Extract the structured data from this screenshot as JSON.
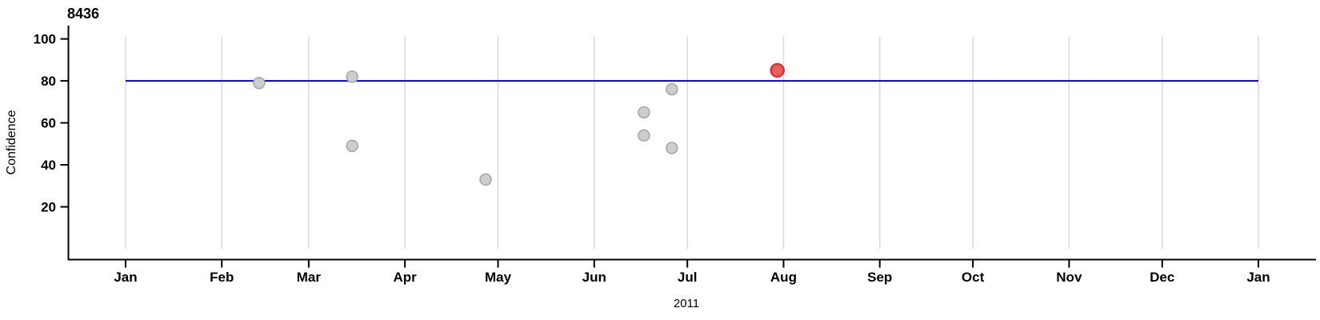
{
  "page": {
    "background": "#ffffff"
  },
  "chart_data": {
    "type": "scatter",
    "title": "8436",
    "x_axis": {
      "year_label": "2011",
      "tick_labels": [
        "Jan",
        "Feb",
        "Mar",
        "Apr",
        "May",
        "Jun",
        "Jul",
        "Aug",
        "Sep",
        "Oct",
        "Nov",
        "Dec",
        "Jan"
      ],
      "tick_day_offsets": [
        0,
        31,
        59,
        90,
        120,
        151,
        181,
        212,
        243,
        273,
        304,
        334,
        365
      ],
      "gridlines": true
    },
    "y_axis": {
      "label": "Confidence",
      "tick_values": [
        100,
        80,
        60,
        40,
        20
      ],
      "visible_range": [
        0,
        101
      ],
      "gridlines": false
    },
    "reference_line": {
      "value": 80,
      "span_days": [
        0,
        365
      ],
      "color": "#0000CC"
    },
    "points": [
      {
        "date": "Feb 13",
        "day_of_year": 43,
        "confidence": 79,
        "highlighted": false
      },
      {
        "date": "Mar 15",
        "day_of_year": 73,
        "confidence": 82,
        "highlighted": false
      },
      {
        "date": "Mar 15",
        "day_of_year": 73,
        "confidence": 49,
        "highlighted": false
      },
      {
        "date": "Apr 27",
        "day_of_year": 116,
        "confidence": 33,
        "highlighted": false
      },
      {
        "date": "Jun 17",
        "day_of_year": 167,
        "confidence": 65,
        "highlighted": false
      },
      {
        "date": "Jun 17",
        "day_of_year": 167,
        "confidence": 54,
        "highlighted": false
      },
      {
        "date": "Jun 26",
        "day_of_year": 176,
        "confidence": 76,
        "highlighted": false
      },
      {
        "date": "Jun 26",
        "day_of_year": 176,
        "confidence": 48,
        "highlighted": false
      },
      {
        "date": "Jul 30",
        "day_of_year": 210,
        "confidence": 85,
        "highlighted": true
      }
    ],
    "colors": {
      "point_fill": "#CDCDCD",
      "point_stroke": "#A6A6A6",
      "highlight_fill": "#EA5E5E",
      "highlight_stroke": "#CF3838",
      "reference_line": "#0000CC",
      "gridline": "#D9D9D9",
      "axis": "#000000"
    }
  }
}
